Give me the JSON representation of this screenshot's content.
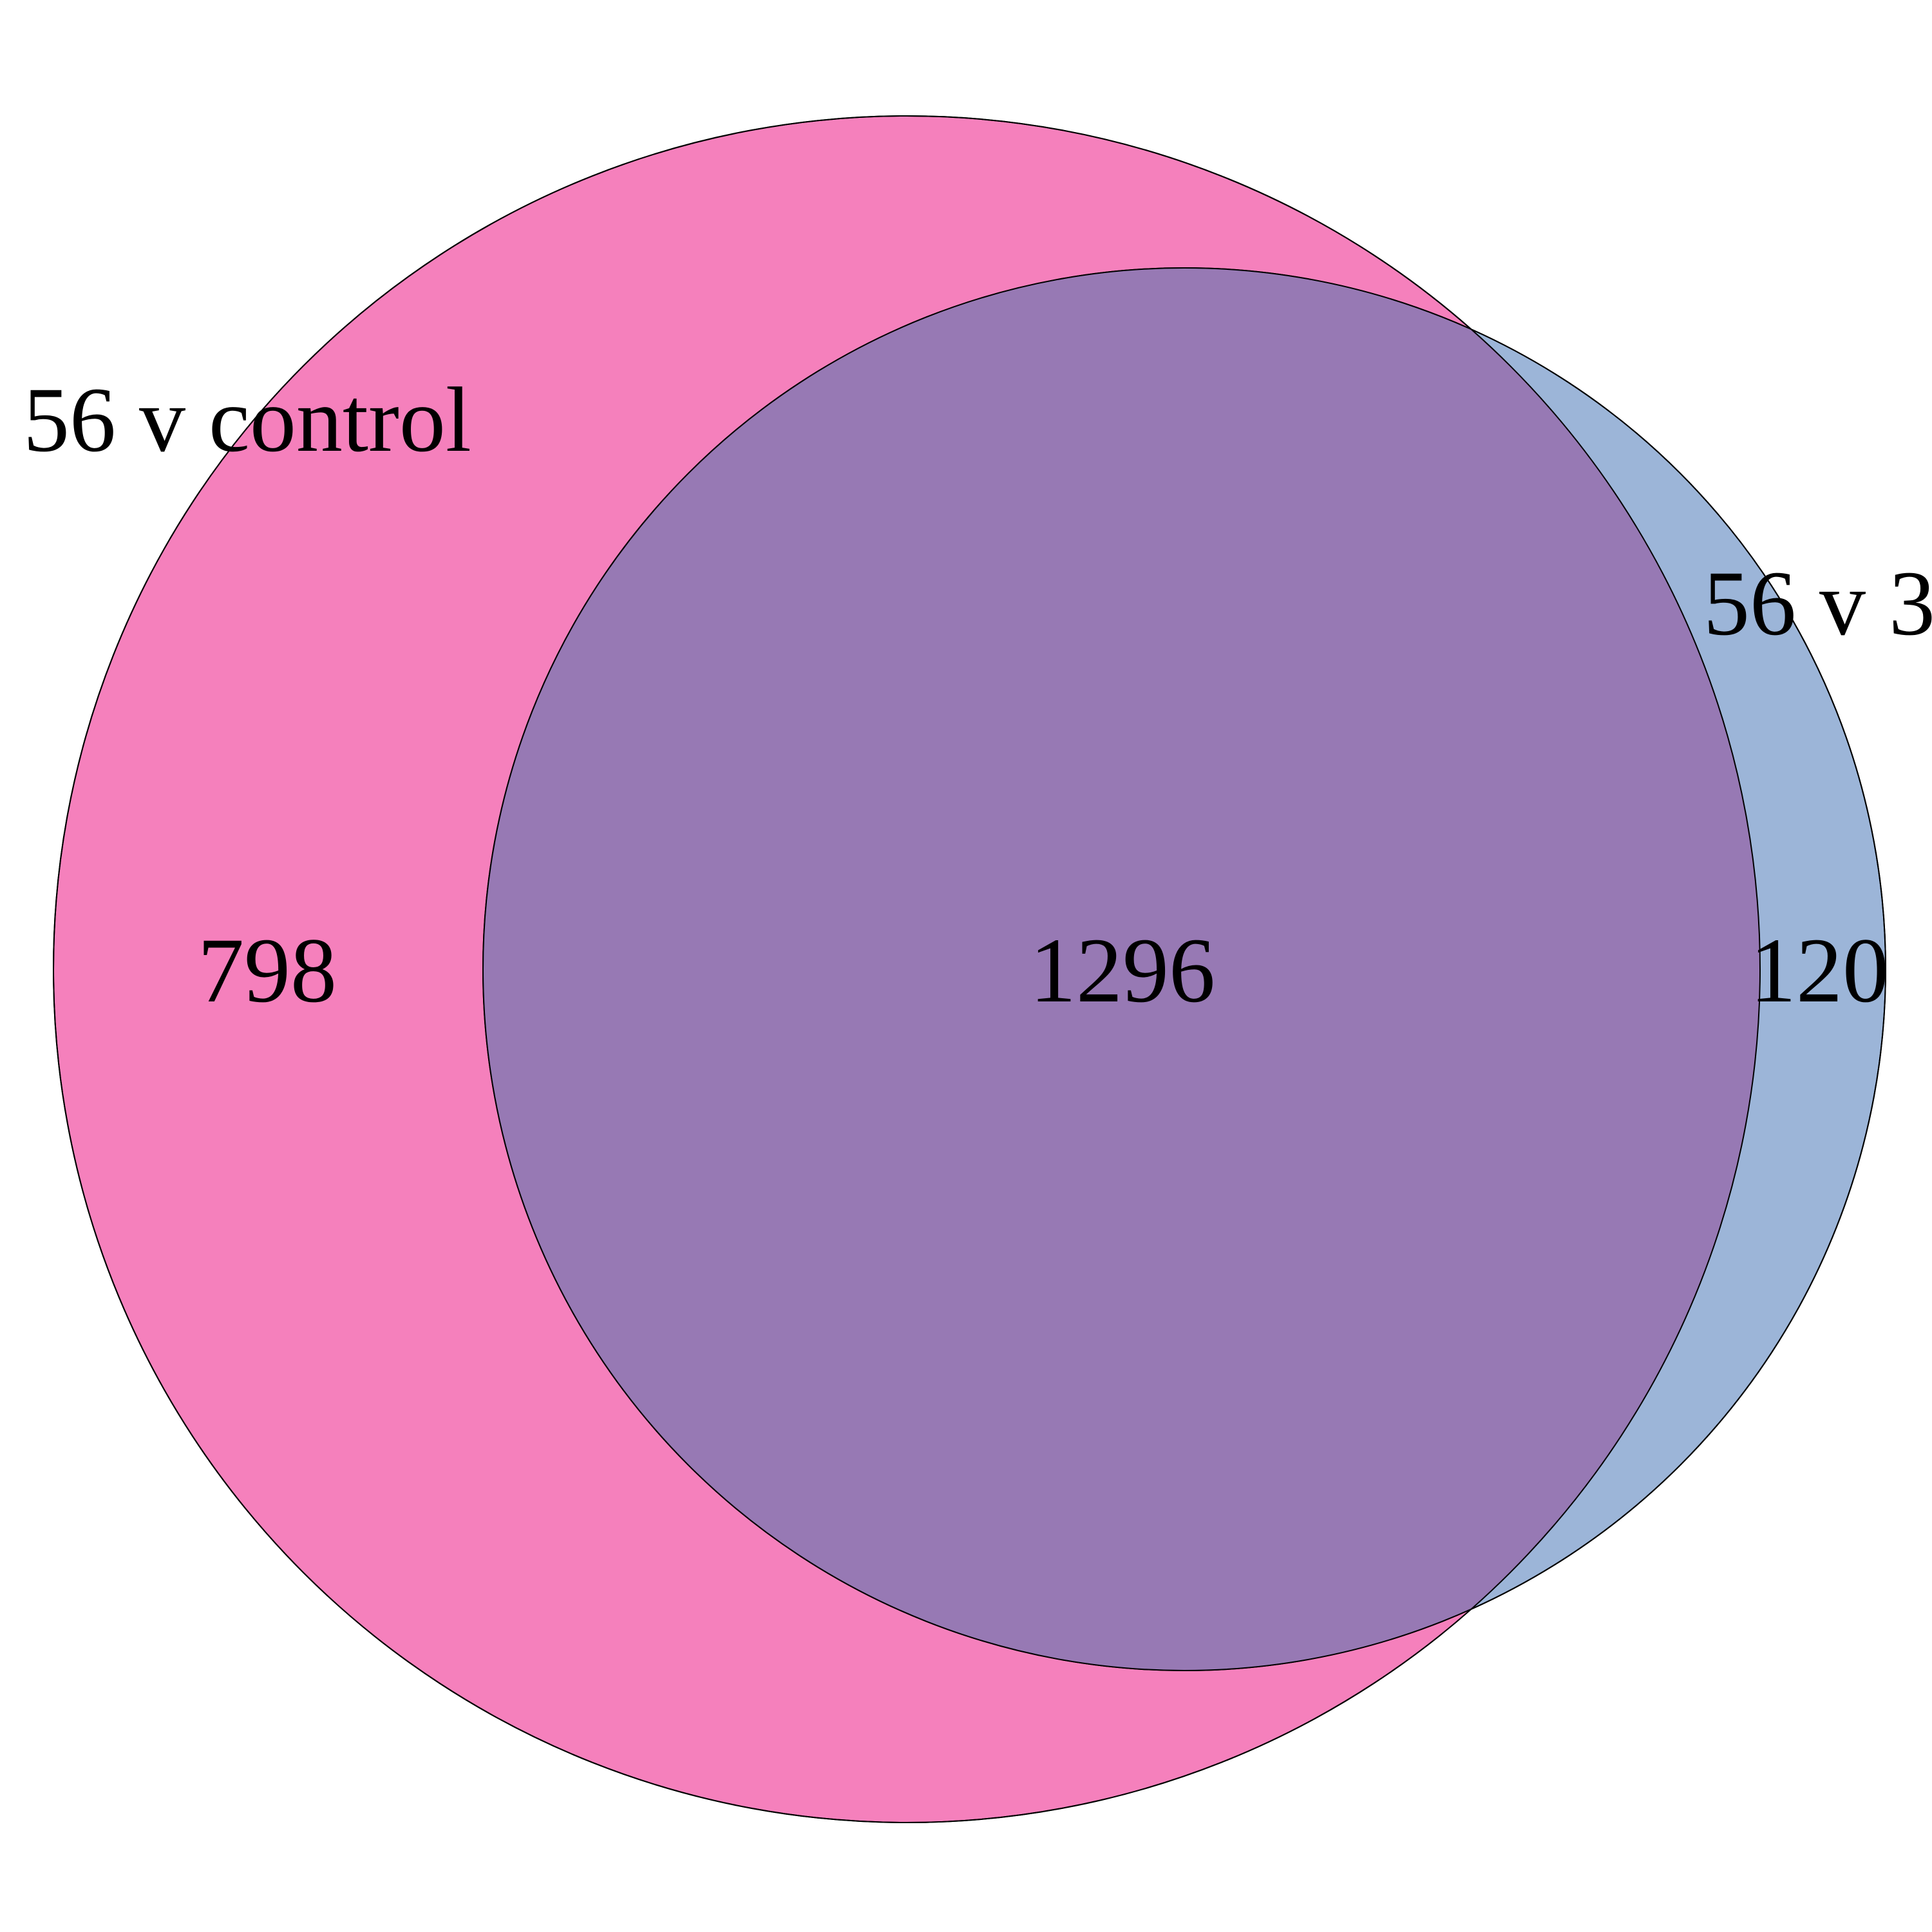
{
  "venn": {
    "sets": [
      {
        "label": "56 v control",
        "color": "#F580BC"
      },
      {
        "label": "56 v 3",
        "color": "#9CB5D8"
      }
    ],
    "overlap_color": "#9779B4",
    "outline_color": "#000000",
    "counts": {
      "only_56_v_control": "798",
      "both": "1296",
      "only_56_v_3": "120"
    }
  }
}
